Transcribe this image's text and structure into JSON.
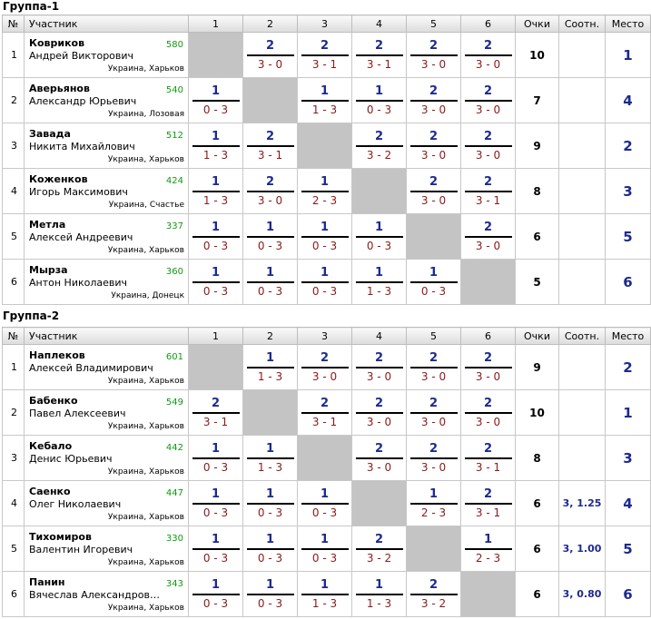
{
  "headers": {
    "num": "№",
    "name": "Участник",
    "cols": [
      "1",
      "2",
      "3",
      "4",
      "5",
      "6"
    ],
    "points": "Очки",
    "ratio": "Соотн.",
    "place": "Место"
  },
  "groups": [
    {
      "title": "Группа-1",
      "rows": [
        {
          "num": "1",
          "last": "Коврико​в",
          "first": "Андрей Викторович",
          "rating": "580",
          "city": "Украина, Харьков",
          "res": [
            null,
            {
              "p": "2",
              "s": "3 - 0"
            },
            {
              "p": "2",
              "s": "3 - 1"
            },
            {
              "p": "2",
              "s": "3 - 1"
            },
            {
              "p": "2",
              "s": "3 - 0"
            },
            {
              "p": "2",
              "s": "3 - 0"
            }
          ],
          "points": "10",
          "ratio": "",
          "place": "1"
        },
        {
          "num": "2",
          "last": "Аверьянов",
          "first": "Александр Юрьевич",
          "rating": "540",
          "city": "Украина, Лозовая",
          "res": [
            {
              "p": "1",
              "s": "0 - 3"
            },
            null,
            {
              "p": "1",
              "s": "1 - 3"
            },
            {
              "p": "1",
              "s": "0 - 3"
            },
            {
              "p": "2",
              "s": "3 - 0"
            },
            {
              "p": "2",
              "s": "3 - 0"
            }
          ],
          "points": "7",
          "ratio": "",
          "place": "4"
        },
        {
          "num": "3",
          "last": "Завада",
          "first": "Никита Михайлович",
          "rating": "512",
          "city": "Украина, Харьков",
          "res": [
            {
              "p": "1",
              "s": "1 - 3"
            },
            {
              "p": "2",
              "s": "3 - 1"
            },
            null,
            {
              "p": "2",
              "s": "3 - 2"
            },
            {
              "p": "2",
              "s": "3 - 0"
            },
            {
              "p": "2",
              "s": "3 - 0"
            }
          ],
          "points": "9",
          "ratio": "",
          "place": "2"
        },
        {
          "num": "4",
          "last": "Коженков",
          "first": "Игорь Максимович",
          "rating": "424",
          "city": "Украина, Счастье",
          "res": [
            {
              "p": "1",
              "s": "1 - 3"
            },
            {
              "p": "2",
              "s": "3 - 0"
            },
            {
              "p": "1",
              "s": "2 - 3"
            },
            null,
            {
              "p": "2",
              "s": "3 - 0"
            },
            {
              "p": "2",
              "s": "3 - 1"
            }
          ],
          "points": "8",
          "ratio": "",
          "place": "3"
        },
        {
          "num": "5",
          "last": "Метла",
          "first": "Алексей Андреевич",
          "rating": "337",
          "city": "Украина, Харьков",
          "res": [
            {
              "p": "1",
              "s": "0 - 3"
            },
            {
              "p": "1",
              "s": "0 - 3"
            },
            {
              "p": "1",
              "s": "0 - 3"
            },
            {
              "p": "1",
              "s": "0 - 3"
            },
            null,
            {
              "p": "2",
              "s": "3 - 0"
            }
          ],
          "points": "6",
          "ratio": "",
          "place": "5"
        },
        {
          "num": "6",
          "last": "Мырза",
          "first": "Антон Николаевич",
          "rating": "360",
          "city": "Украина, Донецк",
          "res": [
            {
              "p": "1",
              "s": "0 - 3"
            },
            {
              "p": "1",
              "s": "0 - 3"
            },
            {
              "p": "1",
              "s": "0 - 3"
            },
            {
              "p": "1",
              "s": "1 - 3"
            },
            {
              "p": "1",
              "s": "0 - 3"
            },
            null
          ],
          "points": "5",
          "ratio": "",
          "place": "6"
        }
      ]
    },
    {
      "title": "Группа-2",
      "rows": [
        {
          "num": "1",
          "last": "Наплеков",
          "first": "Алексей Владимирович",
          "rating": "601",
          "city": "Украина, Харьков",
          "res": [
            null,
            {
              "p": "1",
              "s": "1 - 3"
            },
            {
              "p": "2",
              "s": "3 - 0"
            },
            {
              "p": "2",
              "s": "3 - 0"
            },
            {
              "p": "2",
              "s": "3 - 0"
            },
            {
              "p": "2",
              "s": "3 - 0"
            }
          ],
          "points": "9",
          "ratio": "",
          "place": "2"
        },
        {
          "num": "2",
          "last": "Бабенко",
          "first": "Павел Алексеевич",
          "rating": "549",
          "city": "Украина, Харьков",
          "res": [
            {
              "p": "2",
              "s": "3 - 1"
            },
            null,
            {
              "p": "2",
              "s": "3 - 1"
            },
            {
              "p": "2",
              "s": "3 - 0"
            },
            {
              "p": "2",
              "s": "3 - 0"
            },
            {
              "p": "2",
              "s": "3 - 0"
            }
          ],
          "points": "10",
          "ratio": "",
          "place": "1"
        },
        {
          "num": "3",
          "last": "Кебало",
          "first": "Денис Юрьевич",
          "rating": "442",
          "city": "Украина, Харьков",
          "res": [
            {
              "p": "1",
              "s": "0 - 3"
            },
            {
              "p": "1",
              "s": "1 - 3"
            },
            null,
            {
              "p": "2",
              "s": "3 - 0"
            },
            {
              "p": "2",
              "s": "3 - 0"
            },
            {
              "p": "2",
              "s": "3 - 1"
            }
          ],
          "points": "8",
          "ratio": "",
          "place": "3"
        },
        {
          "num": "4",
          "last": "Саенко",
          "first": "Олег Николаевич",
          "rating": "447",
          "city": "Украина, Харьков",
          "res": [
            {
              "p": "1",
              "s": "0 - 3"
            },
            {
              "p": "1",
              "s": "0 - 3"
            },
            {
              "p": "1",
              "s": "0 - 3"
            },
            null,
            {
              "p": "1",
              "s": "2 - 3"
            },
            {
              "p": "2",
              "s": "3 - 1"
            }
          ],
          "points": "6",
          "ratio": "3, 1.25",
          "place": "4"
        },
        {
          "num": "5",
          "last": "Тихомиров",
          "first": "Валентин Игоревич",
          "rating": "330",
          "city": "Украина, Харьков",
          "res": [
            {
              "p": "1",
              "s": "0 - 3"
            },
            {
              "p": "1",
              "s": "0 - 3"
            },
            {
              "p": "1",
              "s": "0 - 3"
            },
            {
              "p": "2",
              "s": "3 - 2"
            },
            null,
            {
              "p": "1",
              "s": "2 - 3"
            }
          ],
          "points": "6",
          "ratio": "3, 1.00",
          "place": "5"
        },
        {
          "num": "6",
          "last": "Панин",
          "first": "Вячеслав Александров…",
          "rating": "343",
          "city": "Украина, Харьков",
          "res": [
            {
              "p": "1",
              "s": "0 - 3"
            },
            {
              "p": "1",
              "s": "0 - 3"
            },
            {
              "p": "1",
              "s": "1 - 3"
            },
            {
              "p": "1",
              "s": "1 - 3"
            },
            {
              "p": "2",
              "s": "3 - 2"
            },
            null
          ],
          "points": "6",
          "ratio": "3, 0.80",
          "place": "6"
        }
      ]
    }
  ]
}
